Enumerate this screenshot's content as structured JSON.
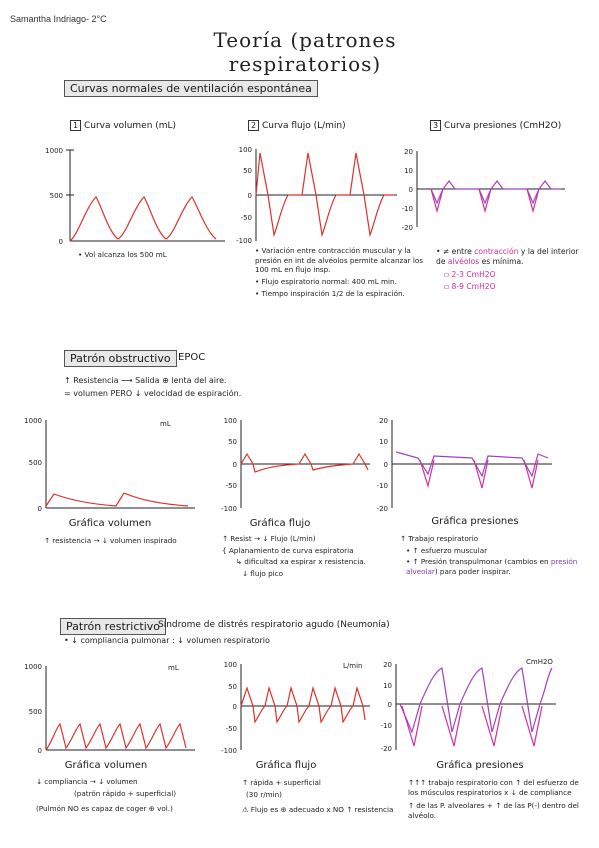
{
  "author": "Samantha Indriago- 2°C",
  "title": "Teoría (patrones respiratorios)",
  "colors": {
    "red": "#e0302a",
    "purple": "#a040c0",
    "pink": "#d030a0"
  },
  "s1": {
    "heading": "Curvas normales de ventilación espontánea",
    "c1": {
      "label": "Curva volumen (mL)",
      "badge": "1",
      "ticks": [
        "1000",
        "500",
        "0"
      ]
    },
    "c2": {
      "label": "Curva flujo (L/min)",
      "badge": "2",
      "ticks": [
        "100",
        "50",
        "0",
        "-50",
        "-100"
      ]
    },
    "c3": {
      "label": "Curva presiones (CmH2O)",
      "badge": "3",
      "ticks": [
        "20",
        "10",
        "0",
        "-10",
        "-20"
      ]
    },
    "note1": "• Vol alcanza los 500 mL",
    "note2": [
      "• Variación entre contracción muscular y la presión en int de alvéolos permite alcanzar los 100 mL en flujo insp.",
      "• Flujo espiratorio normal: 400 mL min.",
      "• Tiempo inspiración 1/2 de la espiración."
    ],
    "note3_a": "• ≠ entre ",
    "note3_b": "contracción",
    "note3_c": " y la del interior de ",
    "note3_d": "alvéolos",
    "note3_e": " es mínima.",
    "note3_items": [
      "▫ 2-3 CmH2O",
      "▫ 8-9 CmH2O"
    ]
  },
  "s2": {
    "heading": "Patrón obstructivo",
    "tag": "EPOC",
    "lines": [
      "↑ Resistencia ⟶ Salida ⊕ lenta del aire.",
      "= volumen PERO ↓ velocidad de espiración."
    ],
    "c1": {
      "ticks": [
        "1000",
        "500",
        "0"
      ],
      "unit": "mL",
      "caption": "Gráfica volumen",
      "note": "↑ resistencia → ↓ volumen inspirado"
    },
    "c2": {
      "ticks": [
        "100",
        "50",
        "0",
        "-50",
        "-100"
      ],
      "caption": "Gráfica flujo",
      "notes": [
        "↑ Resist → ↓ Flujo (L/min)",
        "{ Aplanamiento de curva espiratoria",
        "↳ dificultad xa espirar x resistencia.",
        "↓ flujo pico"
      ]
    },
    "c3": {
      "ticks": [
        "20",
        "10",
        "0",
        "-10",
        "-20"
      ],
      "caption": "Gráfica presiones",
      "notes": [
        "↑ Trabajo respiratorio",
        "• ↑ esfuerzo muscular",
        "• ↑ Presión transpulmonar (cambios en ",
        "presión alveolar",
        ") para poder inspirar."
      ]
    }
  },
  "s3": {
    "heading": "Patrón restrictivo",
    "tag": "Síndrome de distrés respiratorio agudo (Neumonía)",
    "line": "• ↓ compliancia pulmonar : ↓ volumen respiratorio",
    "c1": {
      "ticks": [
        "1000",
        "500",
        "0"
      ],
      "unit": "mL",
      "caption": "Gráfica volumen",
      "notes": [
        "↓ compliancia → ↓ volumen",
        "(patrón rápido + superficial)",
        "(Pulmón NO es capaz de coger ⊕ vol.)"
      ]
    },
    "c2": {
      "ticks": [
        "100",
        "50",
        "0",
        "-50",
        "-100"
      ],
      "unit": "L/min",
      "caption": "Gráfica flujo",
      "notes": [
        "↑ rápida + superficial",
        "(30 r/min)",
        "⚠ Flujo es ⊕ adecuado x NO ↑ resistencia"
      ]
    },
    "c3": {
      "ticks": [
        "20",
        "10",
        "0",
        "-10",
        "-20"
      ],
      "unit": "CmH2O",
      "caption": "Gráfica presiones",
      "notes": [
        "↑↑↑ trabajo respiratorio con ↑ del esfuerzo de los músculos respiratorios x ↓ de compliance",
        "↑ de las P. alveolares + ↑ de las P(-) dentro del alvéolo."
      ]
    }
  }
}
